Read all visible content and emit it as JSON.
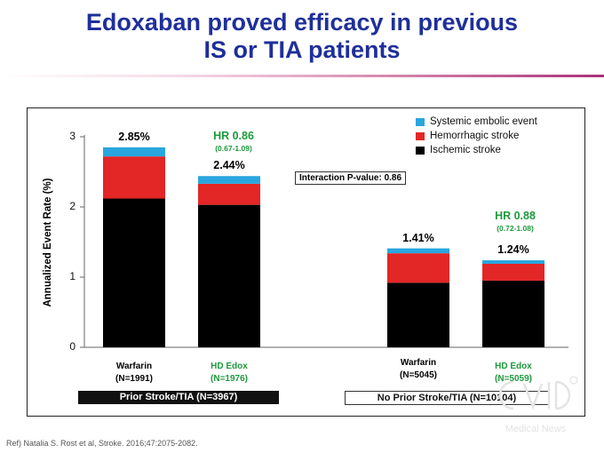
{
  "slide": {
    "title_line1": "Edoxaban proved efficacy in previous",
    "title_line2": "IS or TIA patients",
    "reference": "Ref) Natalia S. Rost et al, Stroke. 2016;47:2075-2082.",
    "watermark": "Medical News"
  },
  "chart_data": {
    "type": "bar",
    "stacked": true,
    "ylabel": "Annualized Event Rate (%)",
    "ylim": [
      0,
      3
    ],
    "yticks": [
      "0",
      "1",
      "2",
      "3"
    ],
    "categories": [
      "Warfarin\n(N=1991)",
      "HD Edox\n(N=1976)",
      "Warfarin\n(N=5045)",
      "HD Edox\n(N=5059)"
    ],
    "category_colors": [
      "#111111",
      "#1e9a3c",
      "#111111",
      "#1e9a3c"
    ],
    "series": [
      {
        "name": "Ischemic stroke",
        "color": "#000000",
        "values": [
          2.12,
          2.03,
          0.92,
          0.95
        ]
      },
      {
        "name": "Hemorrhagic stroke",
        "color": "#e32626",
        "values": [
          0.6,
          0.3,
          0.42,
          0.24
        ]
      },
      {
        "name": "Systemic embolic event",
        "color": "#2aa6de",
        "values": [
          0.13,
          0.11,
          0.07,
          0.05
        ]
      }
    ],
    "legend_order": [
      "Systemic embolic event",
      "Hemorrhagic stroke",
      "Ischemic stroke"
    ],
    "totals": [
      "2.85%",
      "2.44%",
      "1.41%",
      "1.24%"
    ],
    "hazard_ratios": [
      {
        "hr": "HR 0.86",
        "ci": "(0.67-1.09)"
      },
      {
        "hr": "HR 0.88",
        "ci": "(0.72-1.08)"
      }
    ],
    "interaction": "Interaction P-value: 0.86",
    "groups": [
      "Prior Stroke/TIA (N=3967)",
      "No Prior Stroke/TIA (N=10104)"
    ],
    "legend_position": "top-right",
    "grid": false
  }
}
